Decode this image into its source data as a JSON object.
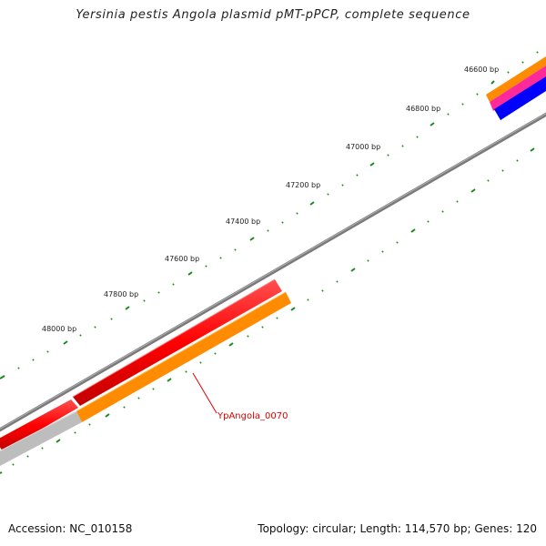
{
  "title": "Yersinia pestis Angola plasmid pMT-pPCP, complete sequence",
  "footer": {
    "accession": "Accession: NC_010158",
    "summary": "Topology: circular; Length: 114,570 bp; Genes: 120"
  },
  "tick_labels": [
    "46600 bp",
    "46800 bp",
    "47000 bp",
    "47200 bp",
    "47400 bp",
    "47600 bp",
    "47800 bp",
    "48000 bp"
  ],
  "gene_label": "YpAngola_0070",
  "colors": {
    "backbone": "#7a7a7a",
    "gene_red": "#ff0000",
    "gene_orange": "#ff8c00",
    "gene_magenta": "#ff2a9a",
    "gene_blue": "#0000ff",
    "gene_gray": "#bdbdbd",
    "tick_green": "#1a8a1a",
    "label_red": "#e00000"
  }
}
